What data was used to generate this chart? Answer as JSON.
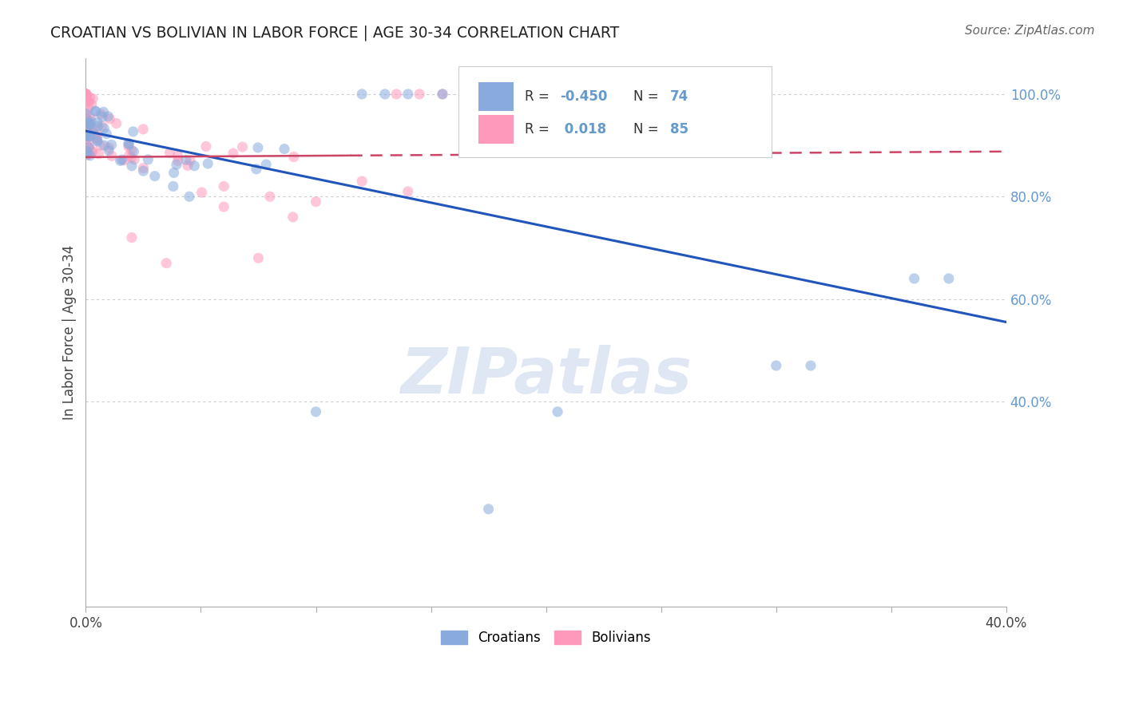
{
  "title": "CROATIAN VS BOLIVIAN IN LABOR FORCE | AGE 30-34 CORRELATION CHART",
  "source": "Source: ZipAtlas.com",
  "ylabel": "In Labor Force | Age 30-34",
  "right_ytick_labels": [
    "100.0%",
    "80.0%",
    "60.0%",
    "40.0%"
  ],
  "right_ytick_vals": [
    1.0,
    0.8,
    0.6,
    0.4
  ],
  "xlim": [
    0.0,
    0.4
  ],
  "ylim": [
    0.0,
    1.07
  ],
  "blue_line_x": [
    0.0,
    0.4
  ],
  "blue_line_y": [
    0.928,
    0.555
  ],
  "pink_line_x": [
    0.0,
    0.4
  ],
  "pink_line_y": [
    0.877,
    0.888
  ],
  "watermark_text": "ZIPatlas",
  "blue_color": "#88aadd",
  "pink_color": "#ff99bb",
  "blue_line_color": "#2255bb",
  "pink_line_color": "#cc4466",
  "grid_color": "#cccccc",
  "right_tick_color": "#6699cc",
  "background_color": "#ffffff",
  "scatter_alpha": 0.55,
  "scatter_size": 90,
  "R_blue": "-0.450",
  "N_blue": "74",
  "R_pink": "0.018",
  "N_pink": "85",
  "legend_label_blue": "Croatians",
  "legend_label_pink": "Bolivians"
}
